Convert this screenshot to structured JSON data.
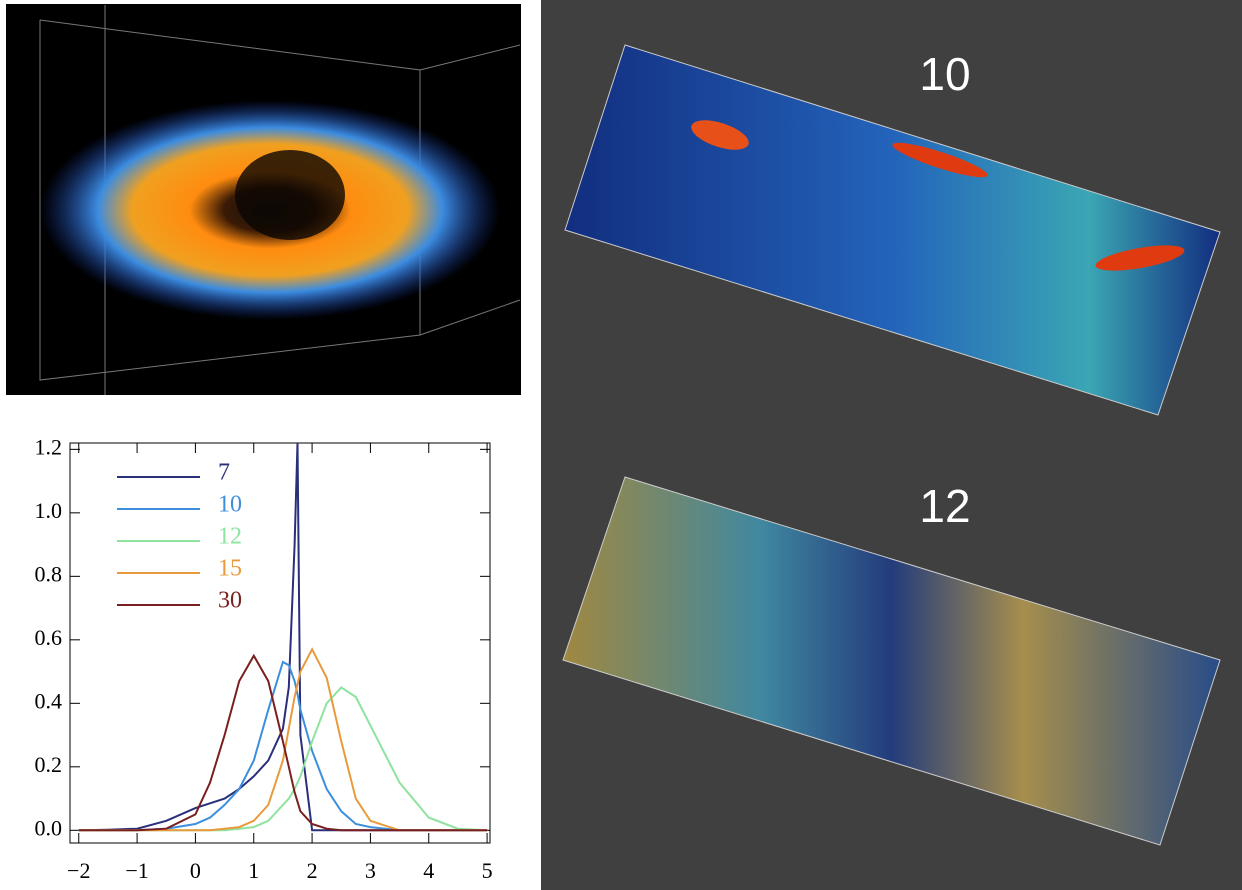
{
  "chart_data": {
    "type": "line",
    "x": [
      -2,
      -1.5,
      -1,
      -0.5,
      0,
      0.25,
      0.5,
      0.75,
      1,
      1.25,
      1.5,
      1.6,
      1.7,
      1.75,
      1.8,
      2,
      2.25,
      2.5,
      2.75,
      3,
      3.5,
      4,
      4.5,
      5
    ],
    "series": [
      {
        "name": "7",
        "color": "#2a2f7a",
        "values": [
          0,
          0.002,
          0.005,
          0.03,
          0.07,
          0.085,
          0.1,
          0.13,
          0.17,
          0.22,
          0.32,
          0.45,
          0.9,
          1.22,
          0.3,
          0,
          0,
          0,
          0,
          0,
          0,
          0,
          0,
          0
        ]
      },
      {
        "name": "10",
        "color": "#3d8fdc",
        "values": [
          0,
          0,
          0,
          0.005,
          0.02,
          0.04,
          0.08,
          0.13,
          0.22,
          0.38,
          0.53,
          0.52,
          0.47,
          0.43,
          0.38,
          0.25,
          0.13,
          0.06,
          0.02,
          0.01,
          0,
          0,
          0,
          0
        ]
      },
      {
        "name": "12",
        "color": "#8fe3a0",
        "values": [
          0,
          0,
          0,
          0,
          0,
          0,
          0,
          0.005,
          0.01,
          0.03,
          0.08,
          0.1,
          0.13,
          0.15,
          0.17,
          0.28,
          0.4,
          0.45,
          0.42,
          0.33,
          0.15,
          0.04,
          0.005,
          0
        ]
      },
      {
        "name": "15",
        "color": "#e89a3c",
        "values": [
          0,
          0,
          0,
          0,
          0,
          0,
          0.005,
          0.01,
          0.03,
          0.08,
          0.22,
          0.32,
          0.42,
          0.46,
          0.5,
          0.57,
          0.48,
          0.28,
          0.1,
          0.03,
          0,
          0,
          0,
          0
        ]
      },
      {
        "name": "30",
        "color": "#7a1f1f",
        "values": [
          0,
          0,
          0,
          0.005,
          0.05,
          0.15,
          0.3,
          0.47,
          0.55,
          0.47,
          0.28,
          0.2,
          0.12,
          0.09,
          0.06,
          0.02,
          0.005,
          0,
          0,
          0,
          0,
          0,
          0,
          0
        ]
      }
    ],
    "xlim": [
      -2.15,
      5.05
    ],
    "ylim": [
      -0.04,
      1.22
    ],
    "xticks": [
      {
        "value": -2,
        "label": "−2"
      },
      {
        "value": -1,
        "label": "−1"
      },
      0,
      1,
      2,
      3,
      4,
      5
    ],
    "yticks": [
      {
        "value": 0,
        "label": "0.0"
      },
      0.2,
      0.4,
      0.6,
      0.8,
      {
        "value": 1,
        "label": "1.0"
      },
      1.2
    ]
  },
  "panels": [
    {
      "label": "10"
    },
    {
      "label": "12"
    }
  ]
}
